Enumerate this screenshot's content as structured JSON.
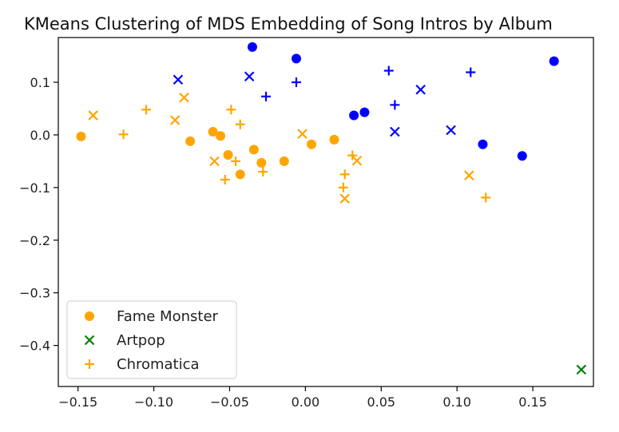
{
  "chart_data": {
    "type": "scatter",
    "title": "KMeans Clustering of MDS Embedding of Song Intros by Album",
    "xlabel": "",
    "ylabel": "",
    "xlim": [
      -0.163,
      0.19
    ],
    "ylim": [
      -0.478,
      0.185
    ],
    "x_ticks": [
      -0.15,
      -0.1,
      -0.05,
      0.0,
      0.05,
      0.1,
      0.15
    ],
    "x_tick_labels": [
      "−0.15",
      "−0.10",
      "−0.05",
      "0.00",
      "0.05",
      "0.10",
      "0.15"
    ],
    "y_ticks": [
      0.1,
      0.0,
      -0.1,
      -0.2,
      -0.3,
      -0.4
    ],
    "y_tick_labels": [
      "0.1",
      "0.0",
      "−0.1",
      "−0.2",
      "−0.3",
      "−0.4"
    ],
    "grid": false,
    "legend": {
      "placement": "lower-left",
      "entries": [
        {
          "label": "Fame Monster",
          "marker": "circle",
          "color": "#FFA500"
        },
        {
          "label": "Artpop",
          "marker": "x",
          "color": "#008000"
        },
        {
          "label": "Chromatica",
          "marker": "plus",
          "color": "#FFA500"
        }
      ]
    },
    "clusters": [
      {
        "color": "#FFA500",
        "name": "cluster-orange"
      },
      {
        "color": "#0000FF",
        "name": "cluster-blue"
      },
      {
        "color": "#008000",
        "name": "cluster-green"
      }
    ],
    "series": [
      {
        "name": "Fame Monster",
        "marker": "circle",
        "points": [
          {
            "x": -0.148,
            "y": -0.003,
            "cluster": 0
          },
          {
            "x": -0.076,
            "y": -0.012,
            "cluster": 0
          },
          {
            "x": -0.061,
            "y": 0.006,
            "cluster": 0
          },
          {
            "x": -0.056,
            "y": -0.002,
            "cluster": 0
          },
          {
            "x": -0.051,
            "y": -0.038,
            "cluster": 0
          },
          {
            "x": -0.043,
            "y": -0.075,
            "cluster": 0
          },
          {
            "x": -0.034,
            "y": -0.028,
            "cluster": 0
          },
          {
            "x": -0.029,
            "y": -0.053,
            "cluster": 0
          },
          {
            "x": -0.014,
            "y": -0.05,
            "cluster": 0
          },
          {
            "x": 0.004,
            "y": -0.018,
            "cluster": 0
          },
          {
            "x": 0.019,
            "y": -0.009,
            "cluster": 0
          },
          {
            "x": -0.035,
            "y": 0.167,
            "cluster": 1
          },
          {
            "x": -0.006,
            "y": 0.145,
            "cluster": 1
          },
          {
            "x": 0.032,
            "y": 0.037,
            "cluster": 1
          },
          {
            "x": 0.039,
            "y": 0.043,
            "cluster": 1
          },
          {
            "x": 0.117,
            "y": -0.018,
            "cluster": 1
          },
          {
            "x": 0.143,
            "y": -0.04,
            "cluster": 1
          },
          {
            "x": 0.164,
            "y": 0.14,
            "cluster": 1
          }
        ]
      },
      {
        "name": "Artpop",
        "marker": "x",
        "points": [
          {
            "x": -0.14,
            "y": 0.037,
            "cluster": 0
          },
          {
            "x": -0.086,
            "y": 0.028,
            "cluster": 0
          },
          {
            "x": -0.08,
            "y": 0.071,
            "cluster": 0
          },
          {
            "x": -0.06,
            "y": -0.05,
            "cluster": 0
          },
          {
            "x": -0.002,
            "y": 0.002,
            "cluster": 0
          },
          {
            "x": 0.026,
            "y": -0.121,
            "cluster": 0
          },
          {
            "x": 0.034,
            "y": -0.049,
            "cluster": 0
          },
          {
            "x": 0.108,
            "y": -0.077,
            "cluster": 0
          },
          {
            "x": -0.084,
            "y": 0.105,
            "cluster": 1
          },
          {
            "x": -0.037,
            "y": 0.111,
            "cluster": 1
          },
          {
            "x": 0.059,
            "y": 0.006,
            "cluster": 1
          },
          {
            "x": 0.076,
            "y": 0.086,
            "cluster": 1
          },
          {
            "x": 0.096,
            "y": 0.009,
            "cluster": 1
          },
          {
            "x": 0.182,
            "y": -0.446,
            "cluster": 2
          }
        ]
      },
      {
        "name": "Chromatica",
        "marker": "plus",
        "points": [
          {
            "x": -0.12,
            "y": 0.001,
            "cluster": 0
          },
          {
            "x": -0.105,
            "y": 0.048,
            "cluster": 0
          },
          {
            "x": -0.053,
            "y": -0.085,
            "cluster": 0
          },
          {
            "x": -0.049,
            "y": 0.048,
            "cluster": 0
          },
          {
            "x": -0.046,
            "y": -0.05,
            "cluster": 0
          },
          {
            "x": -0.043,
            "y": 0.02,
            "cluster": 0
          },
          {
            "x": -0.028,
            "y": -0.07,
            "cluster": 0
          },
          {
            "x": 0.025,
            "y": -0.1,
            "cluster": 0
          },
          {
            "x": 0.026,
            "y": -0.075,
            "cluster": 0
          },
          {
            "x": 0.031,
            "y": -0.039,
            "cluster": 0
          },
          {
            "x": 0.119,
            "y": -0.119,
            "cluster": 0
          },
          {
            "x": -0.026,
            "y": 0.073,
            "cluster": 1
          },
          {
            "x": -0.006,
            "y": 0.1,
            "cluster": 1
          },
          {
            "x": 0.055,
            "y": 0.122,
            "cluster": 1
          },
          {
            "x": 0.059,
            "y": 0.057,
            "cluster": 1
          },
          {
            "x": 0.109,
            "y": 0.119,
            "cluster": 1
          }
        ]
      }
    ]
  }
}
